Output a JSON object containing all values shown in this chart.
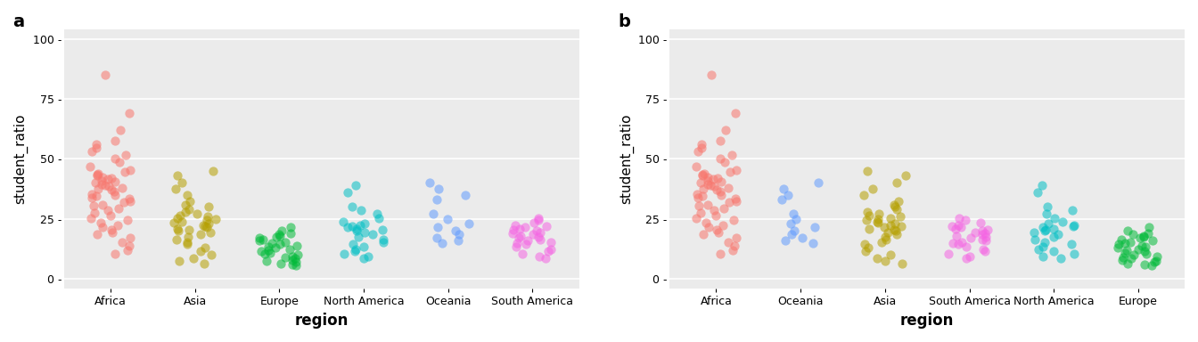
{
  "panel_a_order": [
    "Africa",
    "Asia",
    "Europe",
    "North America",
    "Oceania",
    "South America"
  ],
  "panel_b_order": [
    "Africa",
    "Oceania",
    "Asia",
    "South America",
    "North America",
    "Europe"
  ],
  "region_colors": {
    "Africa": "#F8766D",
    "Asia": "#B5A000",
    "Europe": "#00BA38",
    "North America": "#00BFC4",
    "Oceania": "#619CFF",
    "South America": "#F564E3"
  },
  "region_data": {
    "Africa": [
      85.0,
      69.0,
      62.0,
      57.5,
      56.0,
      54.5,
      53.0,
      51.5,
      50.0,
      48.5,
      47.0,
      45.5,
      44.5,
      44.0,
      43.5,
      43.0,
      42.5,
      42.0,
      41.5,
      41.0,
      40.5,
      40.0,
      39.5,
      39.0,
      38.5,
      38.0,
      37.5,
      37.0,
      36.5,
      35.5,
      35.0,
      34.5,
      34.0,
      33.5,
      32.5,
      32.0,
      31.0,
      30.5,
      29.5,
      28.5,
      27.5,
      26.5,
      25.5,
      24.5,
      23.5,
      22.5,
      21.5,
      20.5,
      19.5,
      18.5,
      17.0,
      15.5,
      14.0,
      12.0,
      10.5
    ],
    "Asia": [
      45.0,
      43.0,
      40.0,
      37.5,
      35.0,
      32.5,
      31.0,
      30.0,
      29.0,
      28.0,
      27.0,
      26.5,
      26.0,
      25.5,
      25.0,
      24.5,
      24.0,
      23.5,
      23.0,
      22.5,
      22.0,
      21.5,
      21.0,
      20.5,
      20.0,
      19.5,
      18.5,
      17.5,
      16.5,
      15.5,
      14.5,
      13.0,
      11.5,
      10.0,
      8.5,
      7.5,
      6.5
    ],
    "Europe": [
      21.5,
      20.0,
      19.0,
      18.5,
      18.0,
      17.5,
      17.0,
      16.5,
      16.0,
      15.5,
      15.0,
      14.5,
      14.0,
      13.5,
      13.0,
      12.5,
      12.0,
      11.5,
      11.0,
      10.5,
      10.0,
      9.5,
      9.0,
      8.5,
      8.0,
      7.5,
      7.0,
      6.5,
      6.0,
      5.5
    ],
    "North America": [
      39.0,
      36.0,
      30.0,
      28.5,
      27.0,
      25.5,
      24.0,
      23.0,
      22.5,
      22.0,
      21.5,
      21.0,
      20.5,
      20.0,
      19.5,
      18.5,
      17.5,
      16.5,
      15.5,
      14.5,
      13.5,
      12.5,
      11.5,
      10.5,
      9.5,
      8.5
    ],
    "Oceania": [
      40.0,
      37.5,
      35.0,
      33.0,
      27.0,
      25.0,
      23.0,
      21.5,
      20.0,
      18.5,
      17.0,
      16.0,
      15.0
    ],
    "South America": [
      25.5,
      24.5,
      23.5,
      22.5,
      22.0,
      21.5,
      21.0,
      20.5,
      20.0,
      19.5,
      19.0,
      18.5,
      18.0,
      17.5,
      17.0,
      16.5,
      16.0,
      15.5,
      15.0,
      14.5,
      13.5,
      12.5,
      11.5,
      10.5,
      9.5,
      8.5
    ]
  },
  "ylim": [
    -4.0,
    104.0
  ],
  "yticks": [
    0,
    25,
    50,
    75,
    100
  ],
  "ylabel": "student_ratio",
  "xlabel": "region",
  "bg_color": "#EBEBEB",
  "grid_color": "white",
  "alpha": 0.55,
  "marker_size": 55,
  "label_a": "a",
  "label_b": "b",
  "tick_fontsize": 9,
  "axis_label_fontsize": 11,
  "xlabel_fontsize": 12,
  "panel_label_fontsize": 14
}
